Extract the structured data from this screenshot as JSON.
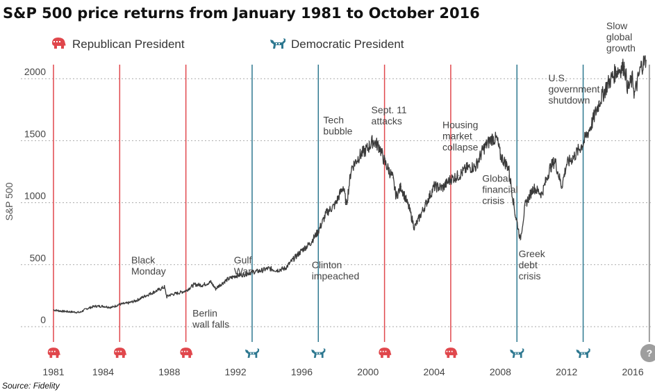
{
  "chart_data": {
    "type": "line",
    "title": "S&P 500 price returns from January 1981 to October 2016",
    "ylabel": "S&P 500",
    "xlabel": "",
    "xlim": [
      1981,
      2016.9
    ],
    "ylim": [
      0,
      2200
    ],
    "yticks": [
      "0",
      "500",
      "1000",
      "1500",
      "2000"
    ],
    "xticks": [
      "1981",
      "1984",
      "1988",
      "1992",
      "1996",
      "2000",
      "2004",
      "2008",
      "2012",
      "2016"
    ],
    "grid": "horizontal-dashed",
    "series": [
      {
        "name": "",
        "color": "#3a3a3a",
        "x": [
          1981.0,
          1981.5,
          1982.0,
          1982.6,
          1983.0,
          1983.5,
          1984.0,
          1984.5,
          1985.0,
          1985.5,
          1986.0,
          1986.5,
          1987.0,
          1987.4,
          1987.7,
          1987.85,
          1988.0,
          1988.5,
          1989.0,
          1989.5,
          1990.0,
          1990.5,
          1990.8,
          1991.0,
          1991.5,
          1992.0,
          1992.5,
          1993.0,
          1993.5,
          1994.0,
          1994.5,
          1995.0,
          1995.5,
          1996.0,
          1996.5,
          1997.0,
          1997.5,
          1998.0,
          1998.5,
          1998.7,
          1999.0,
          1999.5,
          2000.0,
          2000.3,
          2000.7,
          2001.0,
          2001.5,
          2001.7,
          2002.0,
          2002.5,
          2002.8,
          2003.0,
          2003.5,
          2004.0,
          2004.5,
          2005.0,
          2005.5,
          2006.0,
          2006.5,
          2007.0,
          2007.5,
          2007.8,
          2008.0,
          2008.5,
          2008.9,
          2009.0,
          2009.2,
          2009.5,
          2010.0,
          2010.5,
          2011.0,
          2011.3,
          2011.7,
          2012.0,
          2012.5,
          2013.0,
          2013.5,
          2014.0,
          2014.5,
          2015.0,
          2015.5,
          2015.7,
          2016.0,
          2016.1,
          2016.5,
          2016.8
        ],
        "values": [
          135,
          125,
          120,
          115,
          145,
          165,
          165,
          155,
          180,
          190,
          210,
          245,
          275,
          300,
          320,
          240,
          255,
          270,
          290,
          340,
          335,
          360,
          305,
          330,
          380,
          410,
          420,
          440,
          450,
          470,
          455,
          470,
          545,
          615,
          670,
          770,
          920,
          980,
          1130,
          985,
          1280,
          1380,
          1440,
          1500,
          1450,
          1330,
          1200,
          1050,
          1130,
          950,
          800,
          850,
          990,
          1130,
          1120,
          1190,
          1220,
          1280,
          1290,
          1440,
          1520,
          1510,
          1380,
          1280,
          900,
          850,
          700,
          980,
          1120,
          1070,
          1280,
          1340,
          1130,
          1310,
          1380,
          1480,
          1630,
          1820,
          1960,
          2060,
          2100,
          1920,
          2000,
          1870,
          2100,
          2150
        ]
      }
    ],
    "republican_lines": [
      1981,
      1985,
      1989,
      2001,
      2005
    ],
    "democratic_lines": [
      1993,
      1997,
      2009,
      2013
    ],
    "question_line": 2017,
    "bottom_markers": [
      {
        "x": 1981,
        "party": "republican"
      },
      {
        "x": 1985,
        "party": "republican"
      },
      {
        "x": 1989,
        "party": "republican"
      },
      {
        "x": 1993,
        "party": "democratic"
      },
      {
        "x": 1997,
        "party": "democratic"
      },
      {
        "x": 2001,
        "party": "republican"
      },
      {
        "x": 2005,
        "party": "republican"
      },
      {
        "x": 2009,
        "party": "democratic"
      },
      {
        "x": 2013,
        "party": "democratic"
      },
      {
        "x": 2017,
        "party": "unknown",
        "label": "?"
      }
    ],
    "annotations": [
      {
        "lines": [
          "Black",
          "Monday"
        ],
        "x": 1985.7,
        "y": 510,
        "leader": null
      },
      {
        "lines": [
          "Berlin",
          "wall falls"
        ],
        "x": 1989.4,
        "y": 80,
        "leader": [
          1989.3,
          280
        ]
      },
      {
        "lines": [
          "Gulf",
          "War"
        ],
        "x": 1991.9,
        "y": 510,
        "leader": null
      },
      {
        "lines": [
          "Clinton",
          "impeached"
        ],
        "x": 1996.6,
        "y": 470,
        "leader": null
      },
      {
        "lines": [
          "Tech",
          "bubble"
        ],
        "x": 1997.3,
        "y": 1640,
        "leader": null
      },
      {
        "lines": [
          "Sept. 11",
          "attacks"
        ],
        "x": 2000.2,
        "y": 1720,
        "leader": null
      },
      {
        "lines": [
          "Housing",
          "market",
          "collapse"
        ],
        "x": 2004.5,
        "y": 1600,
        "leader": null
      },
      {
        "lines": [
          "Global",
          "financial",
          "crisis"
        ],
        "x": 2006.9,
        "y": 1170,
        "leader": [
          2007.9,
          920
        ]
      },
      {
        "lines": [
          "Greek",
          "debt",
          "crisis"
        ],
        "x": 2009.1,
        "y": 560,
        "leader": null
      },
      {
        "lines": [
          "U.S.",
          "government",
          "shutdown"
        ],
        "x": 2010.9,
        "y": 1980,
        "leader": [
          2012.9,
          1810
        ]
      },
      {
        "lines": [
          "Slow",
          "global",
          "growth"
        ],
        "x": 2014.4,
        "y": 2400,
        "leader": null
      }
    ]
  },
  "legend": {
    "republican_label": "Republican President",
    "democratic_label": "Democratic President",
    "republican_icon": "elephant-icon",
    "democratic_icon": "donkey-icon"
  },
  "colors": {
    "republican": "#e0474c",
    "democratic": "#2e7890",
    "question": "#9e9e9e",
    "line": "#3a3a3a",
    "grid": "#aaaaaa"
  },
  "source": "Source: Fidelity"
}
